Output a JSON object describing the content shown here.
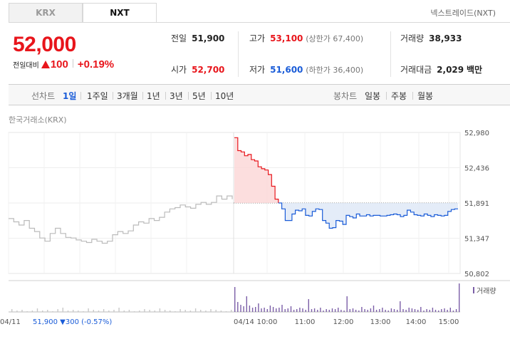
{
  "tabs": [
    {
      "label": "KRX",
      "active": false
    },
    {
      "label": "NXT",
      "active": true
    }
  ],
  "exchange_label": "넥스트레이드(NXT)",
  "price": {
    "current": "52,000",
    "change_label": "전일대비",
    "change_abs": "100",
    "change_pct": "+0.19%",
    "direction": "up"
  },
  "stats": {
    "prev_close": {
      "label": "전일",
      "value": "51,900"
    },
    "open": {
      "label": "시가",
      "value": "52,700"
    },
    "high": {
      "label": "고가",
      "value": "53,100",
      "sub": "(상한가 67,400)"
    },
    "low": {
      "label": "저가",
      "value": "51,600",
      "sub": "(하한가 36,400)"
    },
    "volume": {
      "label": "거래량",
      "value": "38,933"
    },
    "amount": {
      "label": "거래대금",
      "value": "2,029",
      "unit": "백만"
    }
  },
  "periods": {
    "line_label": "선차트",
    "line_items": [
      "1일",
      "1주일",
      "3개월",
      "1년",
      "3년",
      "5년",
      "10년"
    ],
    "selected": "1일",
    "candle_label": "봉차트",
    "candle_items": [
      "일봉",
      "주봉",
      "월봉"
    ]
  },
  "chart_caption": "한국거래소(KRX)",
  "colors": {
    "up": "#e8151b",
    "down": "#1a5cd8",
    "prev": "#bbbbbb",
    "volume": "#7b5ea7"
  },
  "chart_data": {
    "type": "line",
    "y_ticks": [
      "52,980",
      "52,436",
      "51,891",
      "51,347",
      "50,802"
    ],
    "ylim": [
      50802,
      52980
    ],
    "reference": 51891,
    "x_labels": [
      "04/11",
      "04/14",
      "10:00",
      "11:00",
      "12:00",
      "13:00",
      "14:00",
      "15:00"
    ],
    "prev_day_note": {
      "date": "04/11",
      "price": "51,900",
      "change": "▼300 (-0.57%)"
    },
    "volume_legend": "거래량",
    "series": [
      {
        "values": [
          51650,
          51600,
          51550,
          51620,
          51500,
          51450,
          51350,
          51300,
          51420,
          51500,
          51420,
          51360,
          51350,
          51320,
          51300,
          51280,
          51330,
          51300,
          51270,
          51300,
          51400,
          51450,
          51420,
          51460,
          51550,
          51600,
          51580,
          51650,
          51620,
          51670,
          51750,
          51800,
          51820,
          51860,
          51830,
          51810,
          51870,
          51900,
          51870,
          51900,
          52000,
          51950,
          52000,
          51950
        ]
      },
      {
        "values": [
          52900,
          52700,
          52680,
          52620,
          52640,
          52560,
          52540,
          52450,
          52420,
          52400,
          52330,
          52150,
          51950,
          51891,
          51800,
          51620,
          51620,
          51720,
          51780,
          51770,
          51800,
          51700,
          51690,
          51760,
          51800,
          51790,
          51620,
          51580,
          51500,
          51510,
          51620,
          51610,
          51560,
          51700,
          51680,
          51660,
          51720,
          51690,
          51690,
          51710,
          51690,
          51700,
          51700,
          51690,
          51690,
          51700,
          51710,
          51720,
          51710,
          51680,
          51700,
          51780,
          51750,
          51710,
          51700,
          51690,
          51720,
          51700,
          51680,
          51710,
          51700,
          51690,
          51700,
          51760,
          51790,
          51800,
          51800
        ]
      }
    ],
    "volume": [
      4,
      2,
      3,
      1,
      2,
      5,
      2,
      3,
      1,
      4,
      6,
      2,
      3,
      2,
      1,
      5,
      3,
      2,
      4,
      2,
      3,
      6,
      2,
      3,
      1,
      2,
      4,
      3,
      2,
      5,
      3,
      2,
      1,
      4,
      3,
      2,
      5,
      3,
      2,
      4,
      3,
      2,
      1,
      3,
      35,
      14,
      10,
      8,
      22,
      9,
      6,
      7,
      12,
      5,
      6,
      4,
      9,
      7,
      5,
      6,
      10,
      4,
      5,
      8,
      3,
      4,
      6,
      5,
      3,
      18,
      4,
      5,
      3,
      6,
      2,
      4,
      3,
      5,
      4,
      6,
      3,
      2,
      22,
      4,
      5,
      3,
      2,
      7,
      4,
      3,
      5,
      9,
      3,
      4,
      6,
      3,
      2,
      5,
      4,
      3,
      15,
      4,
      3,
      6,
      5,
      4,
      3,
      7,
      2,
      4,
      3,
      6,
      3,
      2,
      4,
      5,
      3,
      6,
      2,
      4,
      40
    ]
  }
}
